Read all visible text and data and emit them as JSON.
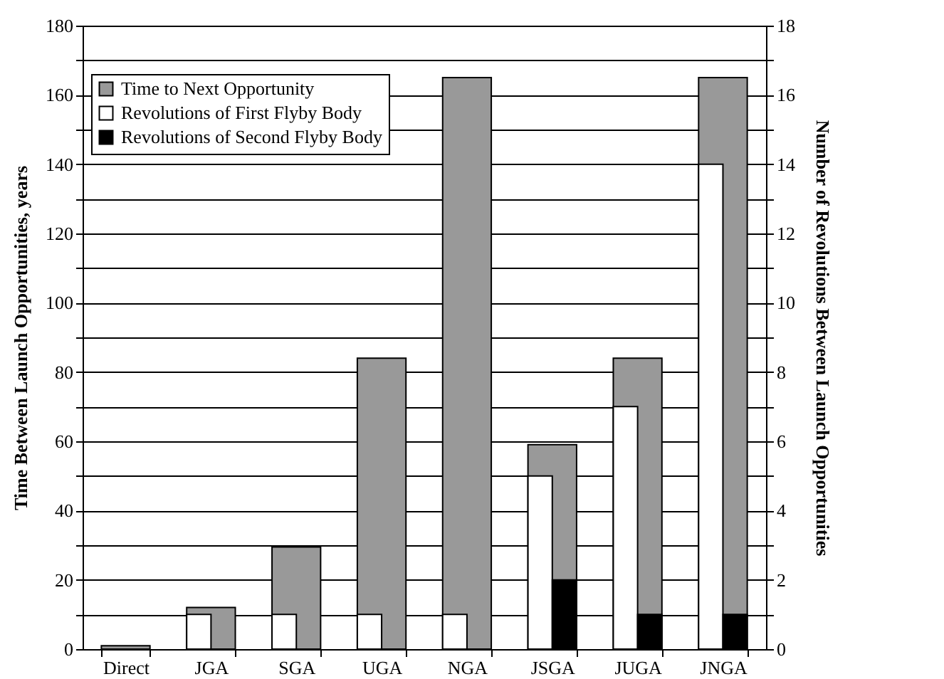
{
  "chart_data": {
    "type": "bar",
    "categories": [
      "Direct",
      "JGA",
      "SGA",
      "UGA",
      "NGA",
      "JSGA",
      "JUGA",
      "JNGA"
    ],
    "series": [
      {
        "name": "Time to Next Opportunity",
        "color": "#999999",
        "values": [
          1,
          12,
          29.5,
          84,
          165,
          59,
          84,
          165
        ]
      },
      {
        "name": "Revolutions of First Flyby Body",
        "color": "#ffffff",
        "axis": "y2",
        "values": [
          null,
          1,
          1,
          1,
          1,
          5,
          7,
          14
        ]
      },
      {
        "name": "Revolutions of Second Flyby Body",
        "color": "#000000",
        "axis": "y2",
        "values": [
          null,
          null,
          null,
          null,
          null,
          2,
          1,
          1
        ]
      }
    ],
    "ylabel": "Time Between Launch Opportunities, years",
    "y2label": "Number of Revolutions Between Launch Opportunities",
    "ylim": [
      0,
      180
    ],
    "yticks": [
      0,
      {
        "value": 10,
        "label": null
      },
      20,
      {
        "value": 30,
        "label": null
      },
      40,
      {
        "value": 50,
        "label": null
      },
      60,
      {
        "value": 70,
        "label": null
      },
      80,
      {
        "value": 90,
        "label": null
      },
      100,
      {
        "value": 110,
        "label": null
      },
      120,
      {
        "value": 130,
        "label": null
      },
      140,
      {
        "value": 150,
        "label": null
      },
      160,
      {
        "value": 170,
        "label": null
      },
      180
    ],
    "y2lim": [
      0,
      18
    ],
    "y2ticks": [
      0,
      {
        "value": 1,
        "label": null
      },
      2,
      {
        "value": 3,
        "label": null
      },
      4,
      {
        "value": 5,
        "label": null
      },
      6,
      {
        "value": 7,
        "label": null
      },
      8,
      {
        "value": 9,
        "label": null
      },
      10,
      {
        "value": 11,
        "label": null
      },
      12,
      {
        "value": 13,
        "label": null
      },
      14,
      {
        "value": 15,
        "label": null
      },
      16,
      {
        "value": 17,
        "label": null
      },
      18
    ],
    "grid": "y",
    "legend": "top left"
  }
}
